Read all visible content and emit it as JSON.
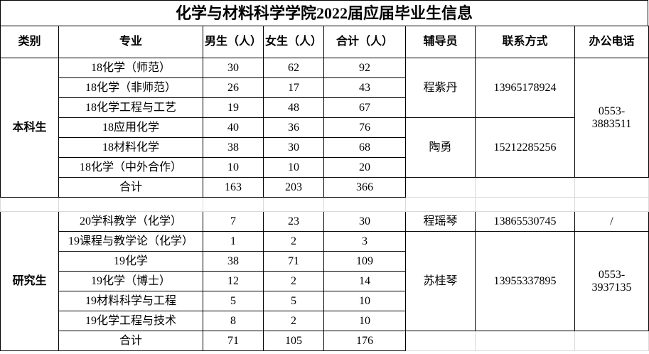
{
  "title": "化学与材料科学学院2022届应届毕业生信息",
  "headers": {
    "category": "类别",
    "major": "专业",
    "male": "男生（人）",
    "female": "女生（人）",
    "total": "合计（人）",
    "counselor": "辅导员",
    "contact": "联系方式",
    "office": "办公电话"
  },
  "undergrad": {
    "category": "本科生",
    "rows": [
      {
        "major": "18化学（师范）",
        "male": "30",
        "female": "62",
        "total": "92"
      },
      {
        "major": "18化学（非师范）",
        "male": "26",
        "female": "17",
        "total": "43"
      },
      {
        "major": "18化学工程与工艺",
        "male": "19",
        "female": "48",
        "total": "67"
      },
      {
        "major": "18应用化学",
        "male": "40",
        "female": "36",
        "total": "76"
      },
      {
        "major": "18材料化学",
        "male": "38",
        "female": "30",
        "total": "68"
      },
      {
        "major": "18化学（中外合作）",
        "male": "10",
        "female": "10",
        "total": "20"
      }
    ],
    "sum": {
      "label": "合计",
      "male": "163",
      "female": "203",
      "total": "366"
    },
    "counselors": [
      {
        "name": "程紫丹",
        "phone": "13965178924"
      },
      {
        "name": "陶勇",
        "phone": "15212285256"
      }
    ],
    "office": "0553-3883511"
  },
  "grad": {
    "category": "研究生",
    "rows": [
      {
        "major": "20学科教学（化学）",
        "male": "7",
        "female": "23",
        "total": "30"
      },
      {
        "major": "19课程与教学论（化学）",
        "male": "1",
        "female": "2",
        "total": "3"
      },
      {
        "major": "19化学",
        "male": "38",
        "female": "71",
        "total": "109"
      },
      {
        "major": "19化学（博士）",
        "male": "12",
        "female": "2",
        "total": "14"
      },
      {
        "major": "19材料科学与工程",
        "male": "5",
        "female": "5",
        "total": "10"
      },
      {
        "major": "19化学工程与技术",
        "male": "8",
        "female": "2",
        "total": "10"
      }
    ],
    "sum": {
      "label": "合计",
      "male": "71",
      "female": "105",
      "total": "176"
    },
    "counselors": [
      {
        "name": "程瑶琴",
        "phone": "13865530745",
        "office": "/"
      },
      {
        "name": "苏桂琴",
        "phone": "13955337895"
      }
    ],
    "office": "0553-3937135"
  }
}
